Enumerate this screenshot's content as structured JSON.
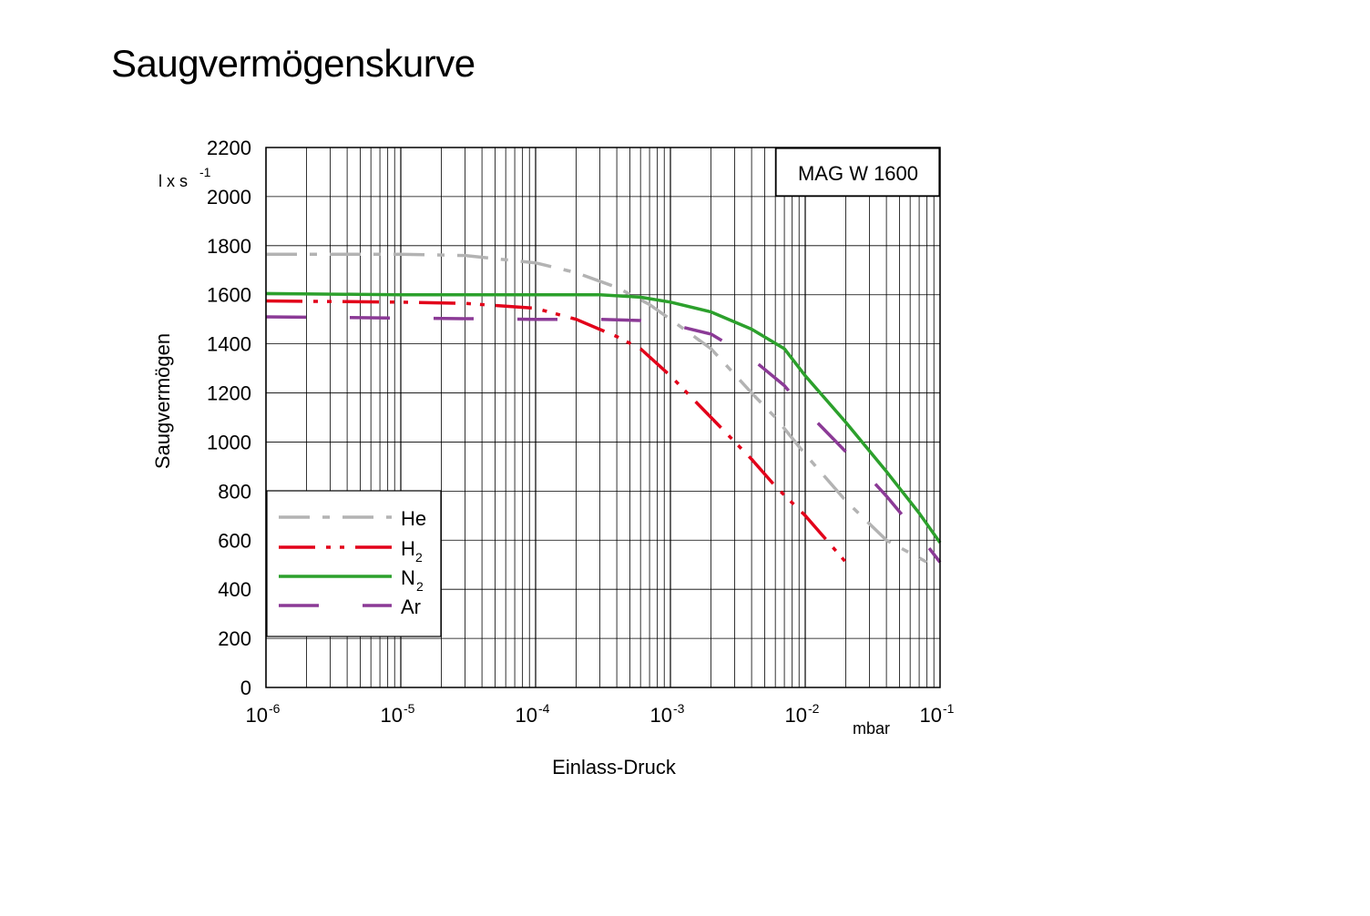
{
  "page": {
    "title": "Saugvermögenskurve"
  },
  "chart_data": {
    "type": "line",
    "title": "Saugvermögenskurve",
    "model_label": "MAG W 1600",
    "xlabel": "Einlass-Druck",
    "x_unit": "mbar",
    "ylabel": "Saugvermögen",
    "y_unit": {
      "base": "l x s",
      "exp": "-1"
    },
    "x_scale": "log",
    "xlim": [
      1e-06,
      0.1
    ],
    "ylim": [
      0,
      2200
    ],
    "grid": true,
    "x_ticks": [
      {
        "base": "10",
        "exp": "-6",
        "value": 1e-06
      },
      {
        "base": "10",
        "exp": "-5",
        "value": 1e-05
      },
      {
        "base": "10",
        "exp": "-4",
        "value": 0.0001
      },
      {
        "base": "10",
        "exp": "-3",
        "value": 0.001
      },
      {
        "base": "10",
        "exp": "-2",
        "value": 0.01
      },
      {
        "base": "10",
        "exp": "-1",
        "value": 0.1
      }
    ],
    "y_ticks": [
      "0",
      "200",
      "400",
      "600",
      "800",
      "1000",
      "1200",
      "1400",
      "1600",
      "1800",
      "2000",
      "2200"
    ],
    "legend_position": "bottom-left",
    "series": [
      {
        "name": "He",
        "sub": "",
        "color": "#b3b3b3",
        "style": "dashdot",
        "x": [
          1e-06,
          1e-05,
          3e-05,
          0.0001,
          0.0002,
          0.0004,
          0.0007,
          0.001,
          0.002,
          0.004,
          0.006,
          0.01,
          0.02,
          0.04,
          0.08
        ],
        "y": [
          1765,
          1765,
          1760,
          1730,
          1690,
          1630,
          1560,
          1500,
          1380,
          1200,
          1100,
          950,
          760,
          600,
          510
        ]
      },
      {
        "name": "H",
        "sub": "2",
        "color": "#e2001a",
        "style": "dashdotdot",
        "x": [
          1e-06,
          1e-05,
          3e-05,
          0.0001,
          0.0002,
          0.0004,
          0.0006,
          0.001,
          0.002,
          0.004,
          0.006,
          0.01,
          0.02
        ],
        "y": [
          1575,
          1570,
          1565,
          1545,
          1500,
          1430,
          1380,
          1270,
          1100,
          930,
          820,
          700,
          510
        ]
      },
      {
        "name": "N",
        "sub": "2",
        "color": "#2ca02c",
        "style": "solid",
        "x": [
          1e-06,
          1e-05,
          0.0001,
          0.0003,
          0.0006,
          0.001,
          0.002,
          0.004,
          0.007,
          0.01,
          0.02,
          0.04,
          0.07,
          0.1
        ],
        "y": [
          1605,
          1600,
          1600,
          1600,
          1590,
          1570,
          1530,
          1460,
          1380,
          1270,
          1080,
          880,
          710,
          590
        ]
      },
      {
        "name": "Ar",
        "sub": "",
        "color": "#8b3a96",
        "style": "longdash",
        "x": [
          1e-06,
          1e-05,
          0.0001,
          0.0003,
          0.0006,
          0.001,
          0.002,
          0.004,
          0.007,
          0.01,
          0.02,
          0.04,
          0.07,
          0.1
        ],
        "y": [
          1510,
          1505,
          1500,
          1500,
          1495,
          1480,
          1440,
          1340,
          1230,
          1130,
          960,
          780,
          620,
          510
        ]
      }
    ]
  }
}
